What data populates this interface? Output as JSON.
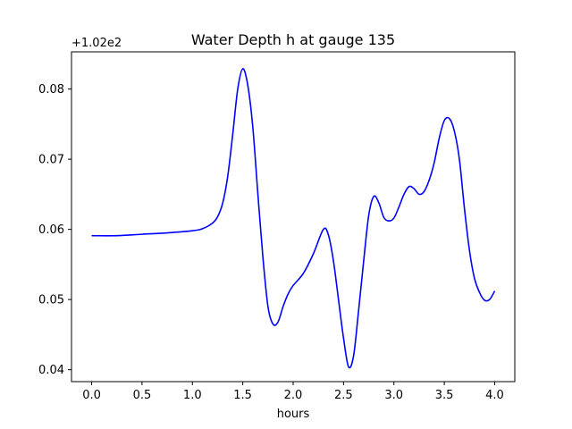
{
  "chart_data": {
    "type": "line",
    "title": "Water Depth h at gauge 135",
    "xlabel": "hours",
    "ylabel": "",
    "y_offset_label": "+1.02e2",
    "xlim": [
      -0.2,
      4.2
    ],
    "ylim": [
      0.0383,
      0.0853
    ],
    "xticks": [
      0.0,
      0.5,
      1.0,
      1.5,
      2.0,
      2.5,
      3.0,
      3.5,
      4.0
    ],
    "xtick_labels": [
      "0.0",
      "0.5",
      "1.0",
      "1.5",
      "2.0",
      "2.5",
      "3.0",
      "3.5",
      "4.0"
    ],
    "yticks": [
      0.04,
      0.05,
      0.06,
      0.07,
      0.08
    ],
    "ytick_labels": [
      "0.04",
      "0.05",
      "0.06",
      "0.07",
      "0.08"
    ],
    "grid": false,
    "series": [
      {
        "color": "#0000ff",
        "x": [
          0.0,
          0.25,
          0.5,
          0.75,
          1.0,
          1.1,
          1.2,
          1.25,
          1.3,
          1.35,
          1.4,
          1.45,
          1.5,
          1.55,
          1.6,
          1.65,
          1.7,
          1.75,
          1.8,
          1.85,
          1.9,
          1.95,
          2.0,
          2.1,
          2.2,
          2.3,
          2.35,
          2.4,
          2.45,
          2.5,
          2.55,
          2.6,
          2.65,
          2.7,
          2.75,
          2.8,
          2.85,
          2.9,
          2.95,
          3.0,
          3.05,
          3.1,
          3.15,
          3.2,
          3.25,
          3.3,
          3.35,
          3.4,
          3.45,
          3.5,
          3.55,
          3.6,
          3.65,
          3.7,
          3.75,
          3.8,
          3.85,
          3.9,
          3.95,
          4.0
        ],
        "y": [
          0.0591,
          0.0591,
          0.0593,
          0.0595,
          0.0598,
          0.0601,
          0.0609,
          0.0618,
          0.0637,
          0.0675,
          0.0735,
          0.08,
          0.0829,
          0.0805,
          0.0745,
          0.065,
          0.056,
          0.049,
          0.0465,
          0.0468,
          0.049,
          0.0508,
          0.052,
          0.0537,
          0.0565,
          0.06,
          0.0592,
          0.0555,
          0.05,
          0.0445,
          0.0404,
          0.042,
          0.0485,
          0.0555,
          0.062,
          0.0647,
          0.0638,
          0.0617,
          0.0612,
          0.0616,
          0.0632,
          0.065,
          0.0661,
          0.0658,
          0.065,
          0.0654,
          0.067,
          0.0695,
          0.073,
          0.0755,
          0.0758,
          0.074,
          0.07,
          0.063,
          0.057,
          0.053,
          0.051,
          0.0499,
          0.05,
          0.0512
        ]
      }
    ]
  }
}
